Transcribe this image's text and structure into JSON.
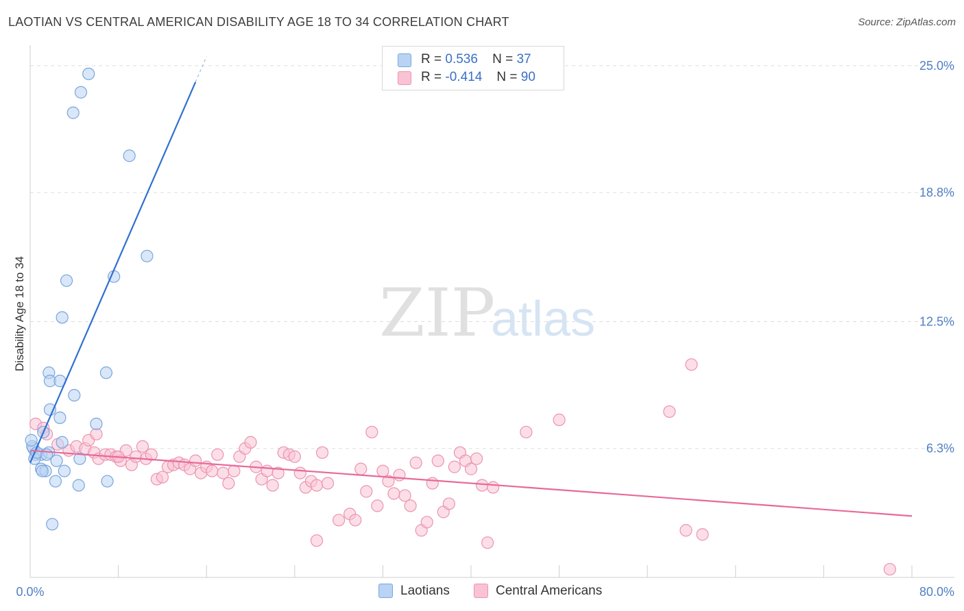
{
  "title": "LAOTIAN VS CENTRAL AMERICAN DISABILITY AGE 18 TO 34 CORRELATION CHART",
  "source": "Source: ZipAtlas.com",
  "watermark": {
    "zip": "ZIP",
    "atlas": "atlas"
  },
  "legend": {
    "series": [
      {
        "r_label": "R =",
        "r_value": "0.536",
        "n_label": "N =",
        "n_value": "37"
      },
      {
        "r_label": "R =",
        "r_value": "-0.414",
        "n_label": "N =",
        "n_value": "90"
      }
    ]
  },
  "colors": {
    "laotian_fill": "#b9d3f4",
    "laotian_stroke": "#7aa5dc",
    "laotian_line": "#2f6fd0",
    "central_fill": "#f9c3d4",
    "central_stroke": "#eb93b1",
    "central_line": "#e7699a",
    "axis_tick": "#4f7fc4",
    "grid": "#dddddd"
  },
  "chart_data": {
    "type": "scatter",
    "title": "LAOTIAN VS CENTRAL AMERICAN DISABILITY AGE 18 TO 34 CORRELATION CHART",
    "xlabel": "",
    "ylabel": "Disability Age 18 to 34",
    "xlim": [
      0,
      80
    ],
    "ylim": [
      0,
      26
    ],
    "x_tick_labels": [
      "0.0%",
      "80.0%"
    ],
    "y_ticks": [
      6.3,
      12.5,
      18.8,
      25.0
    ],
    "y_tick_labels": [
      "6.3%",
      "12.5%",
      "18.8%",
      "25.0%"
    ],
    "series": [
      {
        "name": "Laotians",
        "color": "#b9d3f4",
        "points": [
          [
            5.3,
            24.6
          ],
          [
            4.6,
            23.7
          ],
          [
            3.9,
            22.7
          ],
          [
            9.0,
            20.6
          ],
          [
            10.6,
            15.7
          ],
          [
            7.6,
            14.7
          ],
          [
            3.3,
            14.5
          ],
          [
            2.9,
            12.7
          ],
          [
            1.7,
            10.0
          ],
          [
            1.8,
            9.6
          ],
          [
            2.7,
            9.6
          ],
          [
            6.9,
            10.0
          ],
          [
            4.0,
            8.9
          ],
          [
            1.8,
            8.2
          ],
          [
            2.7,
            7.8
          ],
          [
            6.0,
            7.5
          ],
          [
            1.2,
            7.1
          ],
          [
            2.9,
            6.6
          ],
          [
            0.3,
            6.3
          ],
          [
            0.5,
            6.0
          ],
          [
            1.0,
            6.0
          ],
          [
            1.7,
            6.1
          ],
          [
            0.4,
            5.8
          ],
          [
            4.5,
            5.8
          ],
          [
            2.4,
            5.7
          ],
          [
            1.0,
            5.3
          ],
          [
            1.4,
            5.2
          ],
          [
            1.1,
            5.2
          ],
          [
            3.1,
            5.2
          ],
          [
            2.3,
            4.7
          ],
          [
            4.4,
            4.5
          ],
          [
            7.0,
            4.7
          ],
          [
            2.0,
            2.6
          ],
          [
            0.2,
            6.4
          ],
          [
            0.1,
            6.7
          ],
          [
            0.6,
            6.1
          ],
          [
            1.5,
            6.0
          ]
        ],
        "trend": {
          "x": [
            0,
            15.0
          ],
          "y": [
            5.6,
            24.2
          ]
        }
      },
      {
        "name": "Central Americans",
        "color": "#f9c3d4",
        "points": [
          [
            0.5,
            7.5
          ],
          [
            1.2,
            7.3
          ],
          [
            1.5,
            7.0
          ],
          [
            2.5,
            6.5
          ],
          [
            3.5,
            6.2
          ],
          [
            4.2,
            6.4
          ],
          [
            5.0,
            6.3
          ],
          [
            5.3,
            6.7
          ],
          [
            5.8,
            6.1
          ],
          [
            6.2,
            5.8
          ],
          [
            6.8,
            6.0
          ],
          [
            7.3,
            6.0
          ],
          [
            7.8,
            5.9
          ],
          [
            8.2,
            5.7
          ],
          [
            8.7,
            6.2
          ],
          [
            9.2,
            5.5
          ],
          [
            9.6,
            5.9
          ],
          [
            10.2,
            6.4
          ],
          [
            10.5,
            5.8
          ],
          [
            11.0,
            6.0
          ],
          [
            11.5,
            4.8
          ],
          [
            12.0,
            4.9
          ],
          [
            12.5,
            5.4
          ],
          [
            13.0,
            5.5
          ],
          [
            13.5,
            5.6
          ],
          [
            14.0,
            5.5
          ],
          [
            14.5,
            5.3
          ],
          [
            15.0,
            5.7
          ],
          [
            15.5,
            5.1
          ],
          [
            16.0,
            5.4
          ],
          [
            16.5,
            5.2
          ],
          [
            17.0,
            6.0
          ],
          [
            17.5,
            5.1
          ],
          [
            18.0,
            4.6
          ],
          [
            18.5,
            5.2
          ],
          [
            19.0,
            5.9
          ],
          [
            19.5,
            6.3
          ],
          [
            20.0,
            6.6
          ],
          [
            20.5,
            5.4
          ],
          [
            21.0,
            4.8
          ],
          [
            21.5,
            5.2
          ],
          [
            22.0,
            4.5
          ],
          [
            22.5,
            5.1
          ],
          [
            23.0,
            6.1
          ],
          [
            23.5,
            6.0
          ],
          [
            24.0,
            5.9
          ],
          [
            24.5,
            5.1
          ],
          [
            25.0,
            4.4
          ],
          [
            25.5,
            4.7
          ],
          [
            26.0,
            4.5
          ],
          [
            26.5,
            6.1
          ],
          [
            27.0,
            4.6
          ],
          [
            28.0,
            2.8
          ],
          [
            29.0,
            3.1
          ],
          [
            29.5,
            2.8
          ],
          [
            30.0,
            5.3
          ],
          [
            30.5,
            4.2
          ],
          [
            31.0,
            7.1
          ],
          [
            31.5,
            3.5
          ],
          [
            32.0,
            5.2
          ],
          [
            32.5,
            4.7
          ],
          [
            33.0,
            4.1
          ],
          [
            33.5,
            5.0
          ],
          [
            34.0,
            4.0
          ],
          [
            34.5,
            3.5
          ],
          [
            35.0,
            5.6
          ],
          [
            35.5,
            2.3
          ],
          [
            36.0,
            2.7
          ],
          [
            36.5,
            4.6
          ],
          [
            37.0,
            5.7
          ],
          [
            37.5,
            3.2
          ],
          [
            38.0,
            3.6
          ],
          [
            38.5,
            5.4
          ],
          [
            39.0,
            6.1
          ],
          [
            39.5,
            5.7
          ],
          [
            40.0,
            5.3
          ],
          [
            40.5,
            5.8
          ],
          [
            41.0,
            4.5
          ],
          [
            41.5,
            1.7
          ],
          [
            42.0,
            4.4
          ],
          [
            45.0,
            7.1
          ],
          [
            48.0,
            7.7
          ],
          [
            58.0,
            8.1
          ],
          [
            60.0,
            10.4
          ],
          [
            59.5,
            2.3
          ],
          [
            61.0,
            2.1
          ],
          [
            26.0,
            1.8
          ],
          [
            78.0,
            0.4
          ],
          [
            6.0,
            7.0
          ],
          [
            8.0,
            5.9
          ]
        ],
        "trend": {
          "x": [
            0,
            80
          ],
          "y": [
            6.2,
            3.0
          ]
        }
      }
    ]
  },
  "bottom_legend": [
    {
      "label": "Laotians"
    },
    {
      "label": "Central Americans"
    }
  ]
}
